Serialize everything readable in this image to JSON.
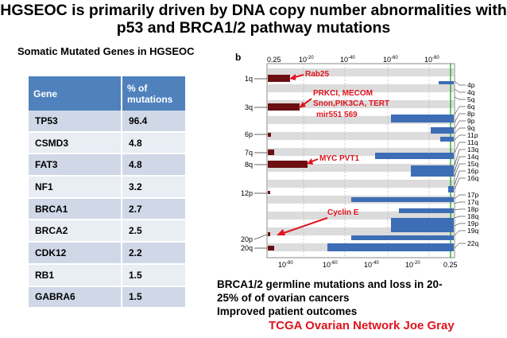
{
  "title": "HGSEOC is primarily driven by DNA copy number abnormalities with p53 and BRCA1/2 pathway mutations",
  "subtitle": "Somatic Mutated Genes in HGSEOC",
  "table": {
    "header": [
      "Gene",
      "% of mutations"
    ],
    "rows": [
      [
        "TP53",
        "96.4"
      ],
      [
        "CSMD3",
        "4.8"
      ],
      [
        "FAT3",
        "4.8"
      ],
      [
        "NF1",
        "3.2"
      ],
      [
        "BRCA1",
        "2.7"
      ],
      [
        "BRCA2",
        "2.5"
      ],
      [
        "CDK12",
        "2.2"
      ],
      [
        "RB1",
        "1.5"
      ],
      [
        "GABRA6",
        "1.5"
      ]
    ]
  },
  "figure": {
    "panel_label": "b",
    "top_axis_labels": [
      "0.25",
      "10",
      "10",
      "10",
      "10"
    ],
    "top_axis_exponents": [
      "",
      "-20",
      "-40",
      "-60",
      "-80"
    ],
    "bottom_axis_labels": [
      "10",
      "10",
      "10",
      "10",
      "0.25"
    ],
    "bottom_axis_exponents": [
      "-80",
      "-60",
      "-40",
      "-20",
      ""
    ],
    "left_chromosomes": [
      "1q",
      "3q",
      "6p",
      "7q",
      "8q",
      "12p",
      "20p",
      "20q"
    ],
    "right_chromosomes": [
      "4p",
      "4q",
      "5q",
      "6q",
      "8p",
      "9p",
      "9q",
      "11p",
      "11q",
      "13q",
      "14q",
      "15q",
      "16p",
      "16q",
      "17p",
      "17q",
      "18p",
      "18q",
      "19p",
      "19q",
      "22q"
    ],
    "annotations": [
      "Rab25",
      "PRKCI, MECOM",
      "Snon,PIK3CA, TERT",
      "mir551 569",
      "MYC PVT1",
      "Cyclin E"
    ]
  },
  "caption_lines": [
    "BRCA1/2 germline mutations and loss in 20-",
    "25% of of ovarian cancers",
    "Improved patient outcomes"
  ],
  "credit": "TCGA  Ovarian Network Joe Gray",
  "colors": {
    "accent_red": "#e0141e",
    "table_header": "#4f81bd",
    "amp_bar": "#6b0f12",
    "del_bar": "#3d6db5"
  }
}
